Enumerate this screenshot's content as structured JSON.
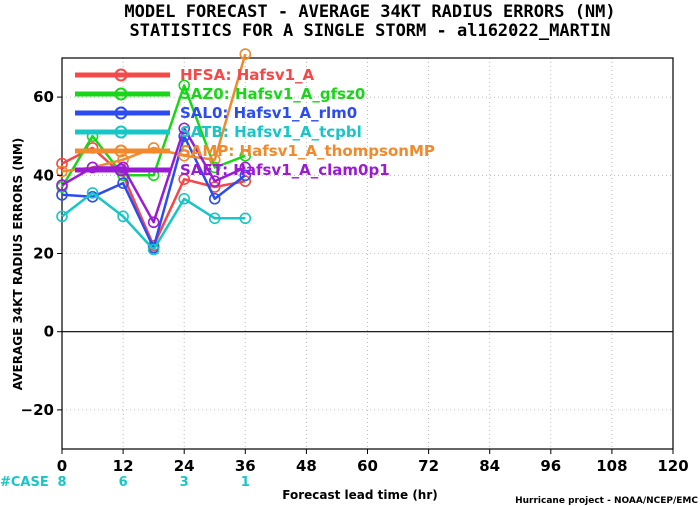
{
  "titles": {
    "line1": "MODEL FORECAST - AVERAGE 34KT RADIUS ERRORS (NM)",
    "line2": "STATISTICS FOR A SINGLE STORM - al162022_MARTIN"
  },
  "credit": "Hurricane project - NOAA/NCEP/EMC",
  "case_label": "#CASE",
  "cases": [
    {
      "x": 0,
      "label": "8"
    },
    {
      "x": 12,
      "label": "6"
    },
    {
      "x": 24,
      "label": "3"
    },
    {
      "x": 36,
      "label": "1"
    }
  ],
  "colors": {
    "case": "#17c6c6",
    "grid": "#aaaaaa",
    "zero_line": "#000000"
  },
  "chart_data": {
    "type": "line",
    "title": "MODEL FORECAST - AVERAGE 34KT RADIUS ERRORS (NM)",
    "subtitle": "STATISTICS FOR A SINGLE STORM - al162022_MARTIN",
    "xlabel": "Forecast lead time (hr)",
    "ylabel": "AVERAGE 34KT RADIUS ERRORS (NM)",
    "xlim": [
      0,
      120
    ],
    "ylim": [
      -30,
      70
    ],
    "x_ticks": [
      0,
      12,
      24,
      36,
      48,
      60,
      72,
      84,
      96,
      108,
      120
    ],
    "x_tick_labels": [
      "0",
      "12",
      "24",
      "36",
      "48",
      "60",
      "72",
      "84",
      "96",
      "108",
      "120"
    ],
    "y_ticks": [
      -20,
      0,
      20,
      40,
      60
    ],
    "y_tick_labels": [
      "−20",
      "0",
      "20",
      "40",
      "60"
    ],
    "grid": true,
    "legend_position": "top-left",
    "x": [
      0,
      6,
      12,
      18,
      24,
      30,
      36
    ],
    "series": [
      {
        "name": "HFSA: Hafsv1_A",
        "color": "#f54848",
        "values": [
          43,
          47,
          40,
          22,
          39,
          37,
          38.5
        ]
      },
      {
        "name": "SAZ0: Hafsv1_A_gfsz0",
        "color": "#19d619",
        "values": [
          37,
          50,
          40,
          40,
          63,
          42,
          45
        ]
      },
      {
        "name": "SAL0: Hafsv1_A_rlm0",
        "color": "#2b4cf0",
        "values": [
          35,
          34.5,
          38,
          21.5,
          50,
          34,
          40
        ]
      },
      {
        "name": "SATB: Hafsv1_A_tcpbl",
        "color": "#17c6c6",
        "values": [
          29.5,
          35.5,
          29.5,
          21,
          34,
          29,
          29
        ]
      },
      {
        "name": "SAMP: Hafsv1_A_thompsonMP",
        "color": "#f08a2c",
        "values": [
          41,
          42,
          44,
          47,
          45,
          44,
          71
        ]
      },
      {
        "name": "SAET: Hafsv1_A_clam0p1",
        "color": "#9a1ad6",
        "values": [
          37.5,
          42,
          42,
          28,
          52,
          38.5,
          42
        ]
      }
    ]
  }
}
